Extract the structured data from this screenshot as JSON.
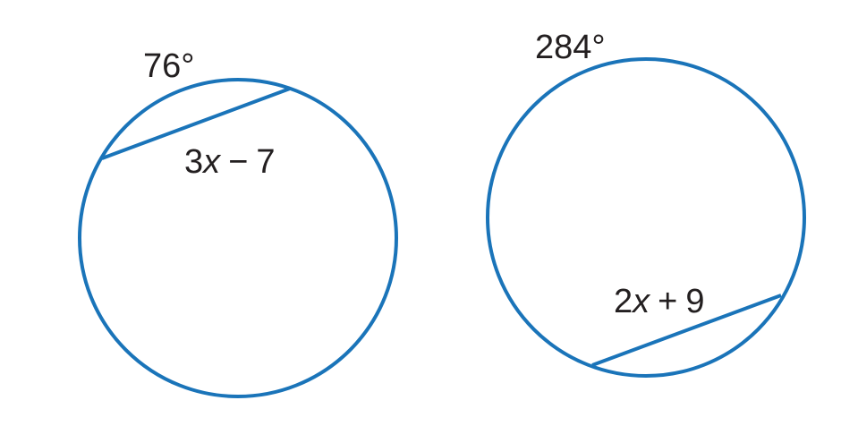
{
  "colors": {
    "stroke": "#1a74b9",
    "text": "#231f20",
    "background": "#ffffff"
  },
  "left_figure": {
    "arc_label": "76°",
    "chord_label": {
      "coef": "3",
      "var": "x",
      "op": "−",
      "const": "7"
    }
  },
  "right_figure": {
    "arc_label": "284°",
    "chord_label": {
      "coef": "2",
      "var": "x",
      "op": "+",
      "const": "9"
    }
  }
}
